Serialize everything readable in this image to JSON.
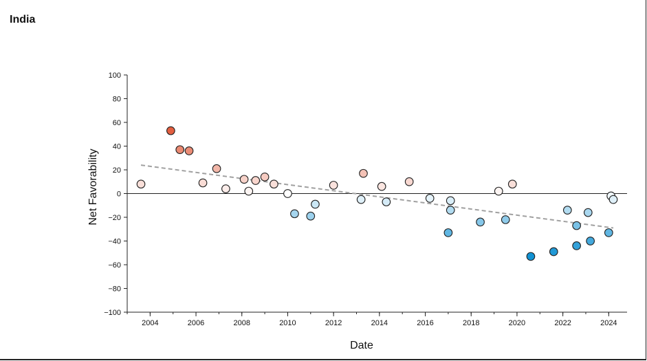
{
  "chart_data": {
    "type": "scatter",
    "title": "India",
    "xlabel": "Date",
    "ylabel": "Net Favorability",
    "xlim": [
      2003.0,
      2024.8
    ],
    "ylim": [
      -100,
      100
    ],
    "x_ticks": [
      "2004",
      "2006",
      "2008",
      "2010",
      "2012",
      "2014",
      "2016",
      "2018",
      "2020",
      "2022",
      "2024"
    ],
    "y_ticks": [
      "100",
      "80",
      "60",
      "40",
      "20",
      "0",
      "−20",
      "−40",
      "−60",
      "−80",
      "−100"
    ],
    "grid": false,
    "legend": "none",
    "zero_line": true,
    "trendline": {
      "style": "dashed",
      "color": "#a0a0a0",
      "x": [
        2003.6,
        2024.2
      ],
      "y": [
        24,
        -29
      ]
    },
    "points": [
      {
        "x": 2003.6,
        "y": 8
      },
      {
        "x": 2004.9,
        "y": 53
      },
      {
        "x": 2005.3,
        "y": 37
      },
      {
        "x": 2005.7,
        "y": 36
      },
      {
        "x": 2006.3,
        "y": 9
      },
      {
        "x": 2006.9,
        "y": 21
      },
      {
        "x": 2007.3,
        "y": 4
      },
      {
        "x": 2008.1,
        "y": 12
      },
      {
        "x": 2008.3,
        "y": 2
      },
      {
        "x": 2008.6,
        "y": 11
      },
      {
        "x": 2009.0,
        "y": 14
      },
      {
        "x": 2009.4,
        "y": 8
      },
      {
        "x": 2010.0,
        "y": 0
      },
      {
        "x": 2010.3,
        "y": -17
      },
      {
        "x": 2011.0,
        "y": -19
      },
      {
        "x": 2011.2,
        "y": -9
      },
      {
        "x": 2012.0,
        "y": 7
      },
      {
        "x": 2013.2,
        "y": -5
      },
      {
        "x": 2013.3,
        "y": 17
      },
      {
        "x": 2014.1,
        "y": 6
      },
      {
        "x": 2014.3,
        "y": -7
      },
      {
        "x": 2015.3,
        "y": 10
      },
      {
        "x": 2016.2,
        "y": -4
      },
      {
        "x": 2017.0,
        "y": -33
      },
      {
        "x": 2017.1,
        "y": -6
      },
      {
        "x": 2017.1,
        "y": -14
      },
      {
        "x": 2018.4,
        "y": -24
      },
      {
        "x": 2019.2,
        "y": 2
      },
      {
        "x": 2019.5,
        "y": -22
      },
      {
        "x": 2019.8,
        "y": 8
      },
      {
        "x": 2020.6,
        "y": -53
      },
      {
        "x": 2021.6,
        "y": -49
      },
      {
        "x": 2022.2,
        "y": -14
      },
      {
        "x": 2022.6,
        "y": -27
      },
      {
        "x": 2022.6,
        "y": -44
      },
      {
        "x": 2023.1,
        "y": -16
      },
      {
        "x": 2023.2,
        "y": -40
      },
      {
        "x": 2024.0,
        "y": -33
      },
      {
        "x": 2024.1,
        "y": -2
      },
      {
        "x": 2024.2,
        "y": -5
      }
    ],
    "color_scale": {
      "negative_max": "#0a8ed2",
      "neutral": "#ffffff",
      "positive_max": "#e25a3a"
    }
  }
}
